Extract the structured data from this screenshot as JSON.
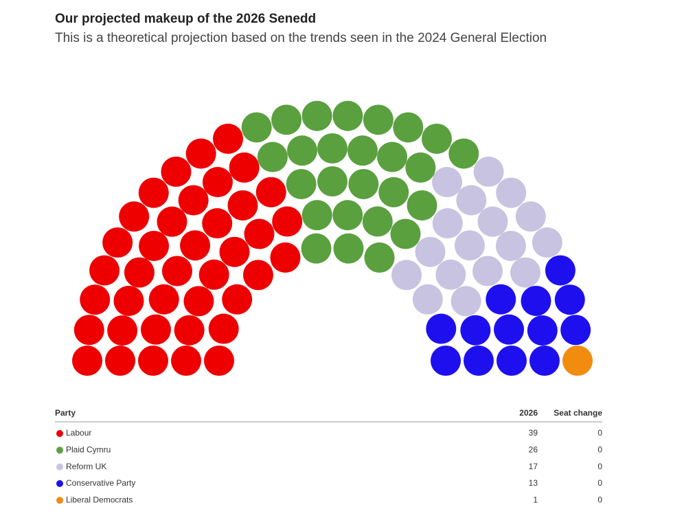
{
  "chart_data": {
    "type": "parliament",
    "title": "Our projected makeup of the 2026 Senedd",
    "subtitle": "This is a theoretical projection based on the trends seen in the 2024 General Election",
    "categories": [
      "Labour",
      "Plaid Cymru",
      "Reform UK",
      "Conservative Party",
      "Liberal Democrats"
    ],
    "values": [
      39,
      26,
      17,
      13,
      1
    ],
    "colors": [
      "#ee0000",
      "#5aa03f",
      "#c8c3e0",
      "#1e10ee",
      "#f28c0f"
    ],
    "seat_change": [
      0,
      0,
      0,
      0,
      0
    ],
    "table_headers": [
      "Party",
      "2026",
      "Seat change"
    ]
  }
}
